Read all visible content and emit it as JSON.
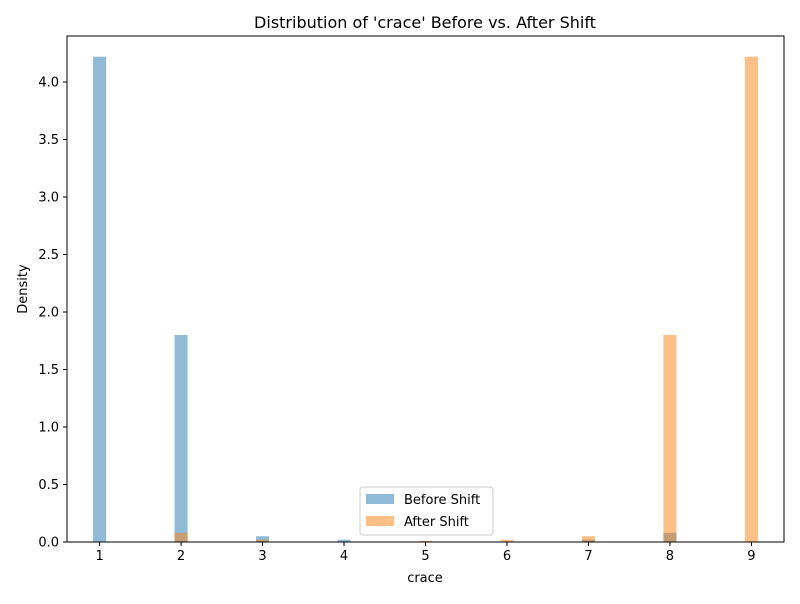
{
  "chart_data": {
    "type": "bar",
    "title": "Distribution of 'crace' Before vs. After Shift",
    "xlabel": "crace",
    "ylabel": "Density",
    "xlim": [
      0.6,
      9.4
    ],
    "ylim": [
      0,
      4.4
    ],
    "xticks": [
      "1",
      "2",
      "3",
      "4",
      "5",
      "6",
      "7",
      "8",
      "9"
    ],
    "yticks": [
      "0.0",
      "0.5",
      "1.0",
      "1.5",
      "2.0",
      "2.5",
      "3.0",
      "3.5",
      "4.0"
    ],
    "bin_width": 0.16,
    "grid": false,
    "legend_position": "lower-center",
    "series": [
      {
        "name": "Before Shift",
        "color": "#1f77b4",
        "opacity": 0.5,
        "bins": [
          {
            "x": 1,
            "value": 4.22
          },
          {
            "x": 2,
            "value": 1.8
          },
          {
            "x": 3,
            "value": 0.05
          },
          {
            "x": 4,
            "value": 0.02
          },
          {
            "x": 5,
            "value": 0.005
          },
          {
            "x": 7,
            "value": 0.02
          },
          {
            "x": 8,
            "value": 0.08
          }
        ]
      },
      {
        "name": "After Shift",
        "color": "#ff7f0e",
        "opacity": 0.5,
        "bins": [
          {
            "x": 2,
            "value": 0.08
          },
          {
            "x": 3,
            "value": 0.02
          },
          {
            "x": 5,
            "value": 0.01
          },
          {
            "x": 6,
            "value": 0.02
          },
          {
            "x": 7,
            "value": 0.05
          },
          {
            "x": 8,
            "value": 1.8
          },
          {
            "x": 9,
            "value": 4.22
          }
        ]
      }
    ]
  }
}
